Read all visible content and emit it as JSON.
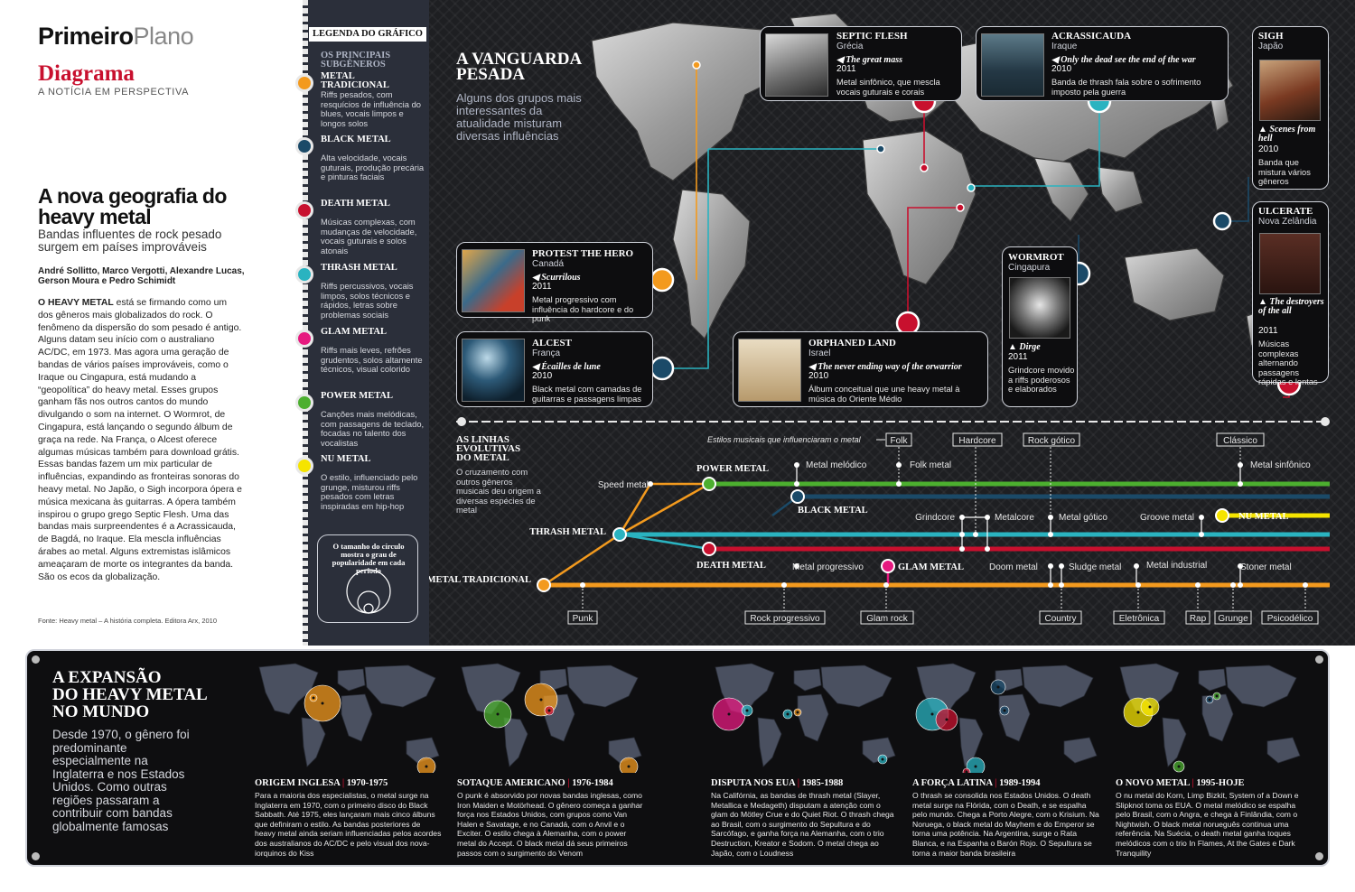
{
  "header": {
    "brand_bold": "Primeiro",
    "brand_light": "Plano",
    "section": "Diagrama",
    "section_sub": "A NOTÍCIA EM PERSPECTIVA"
  },
  "article": {
    "headline": "A nova geografia do heavy metal",
    "deck": "Bandas influentes de rock pesado surgem em países improváveis",
    "byline": "André Sollitto, Marco Vergotti, Alexandre Lucas, Gerson Moura e Pedro Schimidt",
    "lead": "O HEAVY METAL",
    "body": " está se firmando como um dos gêneros mais globalizados do rock. O fenômeno da dispersão do som pesado é antigo. Alguns datam seu início com o australiano AC/DC, em 1973. Mas agora uma geração de bandas de vários países improváveis, como o Iraque ou Cingapura, está mudando a “geopolítica” do heavy metal. Esses grupos ganham fãs nos outros cantos do mundo divulgando o som na internet. O Wormrot, de Cingapura, está lançando o segundo álbum de graça na rede. Na França, o Alcest oferece algumas músicas também para download grátis. Essas bandas fazem um mix particular de influências, expandindo as fronteiras sonoras do heavy metal. No Japão, o Sigh incorpora ópera e música mexicana às guitarras. A ópera também inspirou o grupo grego Septic Flesh. Uma das bandas mais surpreendentes é a Acrassicauda, de Bagdá, no Iraque. Ela mescla influências árabes ao metal. Alguns extremistas islâmicos ameaçaram de morte os integrantes da banda. São os ecos da globalização.",
    "source": "Fonte: Heavy metal – A história completa. Editora Arx, 2010"
  },
  "legend": {
    "title": "LEGENDA DO GRÁFICO",
    "subtitle": "OS PRINCIPAIS SUBGÊNEROS",
    "genres": [
      {
        "name": "METAL TRADICIONAL",
        "color": "#f39a1e",
        "desc": "Riffs pesados, com resquícios de influência do blues, vocais limpos e longos solos"
      },
      {
        "name": "BLACK METAL",
        "color": "#1b4a68",
        "desc": "Alta velocidade, vocais guturais, produção precária e pinturas faciais"
      },
      {
        "name": "DEATH METAL",
        "color": "#c8102e",
        "desc": "Músicas complexas, com mudanças de velocidade, vocais guturais e solos atonais"
      },
      {
        "name": "THRASH METAL",
        "color": "#2ab3c0",
        "desc": "Riffs percussivos, vocais limpos, solos técnicos e rápidos, letras sobre problemas sociais"
      },
      {
        "name": "GLAM METAL",
        "color": "#e6197f",
        "desc": "Riffs mais leves, refrões grudentos, solos altamente técnicos, visual colorido"
      },
      {
        "name": "POWER METAL",
        "color": "#4caf2f",
        "desc": "Canções mais melódicas, com passagens de teclado, focadas no talento dos vocalistas"
      },
      {
        "name": "NU METAL",
        "color": "#f5e400",
        "desc": "O estilo, influenciado pelo grunge, misturou riffs pesados com letras inspiradas em hip-hop"
      }
    ],
    "size_note": "O tamanho do círculo mostra o grau de popularidade em cada período"
  },
  "vanguard": {
    "title_line1": "A VANGUARDA",
    "title_line2": "PESADA",
    "deck": "Alguns dos grupos mais interessantes da atualidade misturam diversas influências"
  },
  "bands": [
    {
      "band": "SEPTIC FLESH",
      "country": "Grécia",
      "album": "The great mass",
      "year": "2011",
      "desc": "Metal sinfônico, que mescla vocais guturais e corais"
    },
    {
      "band": "ACRASSICAUDA",
      "country": "Iraque",
      "album": "Only the dead see the end of the war",
      "year": "2010",
      "desc": "Banda de thrash fala sobre o sofrimento imposto pela guerra"
    },
    {
      "band": "SIGH",
      "country": "Japão",
      "album": "Scenes from hell",
      "year": "2010",
      "desc": "Banda que mistura vários gêneros"
    },
    {
      "band": "ULCERATE",
      "country": "Nova Zelândia",
      "album": "The destroyers of the all",
      "year": "2011",
      "desc": "Músicas complexas alternando passagens rápidas e lentas"
    },
    {
      "band": "PROTEST THE HERO",
      "country": "Canadá",
      "album": "Scurrilous",
      "year": "2011",
      "desc": "Metal progressivo com influência do hardcore e do punk"
    },
    {
      "band": "ALCEST",
      "country": "França",
      "album": "Écailles de lune",
      "year": "2010",
      "desc": "Black metal com camadas de guitarras e passagens limpas"
    },
    {
      "band": "ORPHANED LAND",
      "country": "Israel",
      "album": "The never ending way of the orwarrior",
      "year": "2010",
      "desc": "Álbum conceitual que une heavy metal à música do Oriente Médio"
    },
    {
      "band": "WORMROT",
      "country": "Cingapura",
      "album": "Dirge",
      "year": "2011",
      "desc": "Grindcore movido a riffs poderosos e elaborados"
    }
  ],
  "timeline": {
    "title": "AS LINHAS EVOLUTIVAS DO METAL",
    "deck": "O cruzamento com outros gêneros musicais deu origem a diversas espécies de metal",
    "influences_caption": "Estilos musicais que influenciaram o metal",
    "top_influences": [
      "Folk",
      "Hardcore",
      "Rock gótico",
      "Clássico"
    ],
    "bottom_influences": [
      "Punk",
      "Rock progressivo",
      "Glam rock",
      "Country",
      "Eletrônica",
      "Rap",
      "Grunge",
      "Psicodélico"
    ],
    "branches": {
      "traditional": "METAL TRADICIONAL",
      "thrash": "THRASH METAL",
      "power": "POWER METAL",
      "black": "BLACK METAL",
      "death": "DEATH METAL",
      "glam": "GLAM METAL",
      "nu": "NU METAL"
    },
    "subgenres": [
      "Speed metal",
      "Metal melódico",
      "Folk metal",
      "Metal sinfônico",
      "Grindcore",
      "Metalcore",
      "Metal gótico",
      "Groove metal",
      "Metal progressivo",
      "Doom metal",
      "Sludge metal",
      "Metal industrial",
      "Stoner metal"
    ]
  },
  "expansion": {
    "title_line1": "A EXPANSÃO",
    "title_line2": "DO HEAVY METAL",
    "title_line3": "NO MUNDO",
    "deck": "Desde 1970, o gênero foi predominante especialmente na Inglaterra e nos Estados Unidos. Como outras regiões passaram a contribuir com bandas globalmente famosas",
    "eras": [
      {
        "title": "ORIGEM INGLESA",
        "years": "1970-1975",
        "text": "Para a maioria dos especialistas, o metal surge na Inglaterra em 1970, com o primeiro disco do Black Sabbath. Até 1975, eles lançaram mais cinco álbuns que definiram o estilo. As bandas posteriores de heavy metal ainda seriam influenciadas pelos acordes dos australianos do AC/DC e pelo visual dos nova-iorquinos do Kiss"
      },
      {
        "title": "SOTAQUE AMERICANO",
        "years": "1976-1984",
        "text": "O punk é absorvido por novas bandas inglesas, como Iron Maiden e Motörhead. O gênero começa a ganhar força nos Estados Unidos, com grupos como Van Halen e Savatage, e no Canadá, com o Anvil e o Exciter. O estilo chega à Alemanha, com o power metal do Accept. O black metal dá seus primeiros passos com o surgimento do Venom"
      },
      {
        "title": "DISPUTA NOS EUA",
        "years": "1985-1988",
        "text": "Na Califórnia, as bandas de thrash metal (Slayer, Metallica e Medageth) disputam a atenção com o glam do Mötley Crue e do Quiet Riot. O thrash chega ao Brasil, com o surgimento do Sepultura e do Sarcófago, e ganha força na Alemanha, com o trio Destruction, Kreator e Sodom. O metal chega ao Japão, com o Loudness"
      },
      {
        "title": "A FORÇA LATINA",
        "years": "1989-1994",
        "text": "O thrash se consolida nos Estados Unidos. O death metal surge na Flórida, com o Death, e se espalha pelo mundo. Chega a Porto Alegre, com o Krisium. Na Noruega, o black metal do Mayhem e do Emperor se torna uma potência. Na Argentina, surge o Rata Blanca, e na Espanha o Barón Rojo. O Sepultura se torna a maior banda brasileira"
      },
      {
        "title": "O NOVO METAL",
        "years": "1995-HOJE",
        "text": "O nu metal do Korn, Limp Bizkit, System of a Down e Slipknot toma os EUA. O metal melódico se espalha pelo Brasil, com o Angra, e chega à Finlândia, com o Nightwish. O black metal norueguês continua uma referência. Na Suécia, o death metal ganha toques melódicos com o trio In Flames, At the Gates e Dark Tranquility"
      }
    ]
  }
}
